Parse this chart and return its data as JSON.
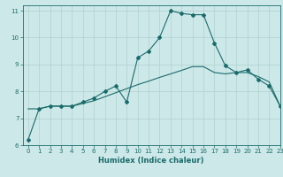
{
  "xlabel": "Humidex (Indice chaleur)",
  "ylabel": "",
  "background_color": "#cde8e8",
  "line_color": "#1a6b6b",
  "grid_color": "#b0d0d0",
  "xlim": [
    -0.5,
    23
  ],
  "ylim": [
    6,
    11.2
  ],
  "yticks": [
    6,
    7,
    8,
    9,
    10,
    11
  ],
  "xticks": [
    0,
    1,
    2,
    3,
    4,
    5,
    6,
    7,
    8,
    9,
    10,
    11,
    12,
    13,
    14,
    15,
    16,
    17,
    18,
    19,
    20,
    21,
    22,
    23
  ],
  "curve1_x": [
    0,
    1,
    2,
    3,
    4,
    5,
    6,
    7,
    8,
    9,
    10,
    11,
    12,
    13,
    14,
    15,
    16,
    17,
    18,
    19,
    20,
    21,
    22,
    23
  ],
  "curve1_y": [
    6.2,
    7.35,
    7.45,
    7.45,
    7.45,
    7.6,
    7.75,
    8.0,
    8.2,
    7.6,
    9.25,
    9.5,
    10.0,
    11.0,
    10.9,
    10.85,
    10.85,
    9.8,
    8.95,
    8.7,
    8.8,
    8.45,
    8.2,
    7.45
  ],
  "curve2_x": [
    0,
    1,
    2,
    3,
    4,
    5,
    6,
    7,
    8,
    9,
    10,
    11,
    12,
    13,
    14,
    15,
    16,
    17,
    18,
    19,
    20,
    21,
    22,
    23
  ],
  "curve2_y": [
    7.35,
    7.35,
    7.45,
    7.45,
    7.45,
    7.55,
    7.65,
    7.8,
    7.95,
    8.1,
    8.25,
    8.38,
    8.52,
    8.65,
    8.78,
    8.92,
    8.92,
    8.7,
    8.65,
    8.7,
    8.7,
    8.55,
    8.35,
    7.45
  ],
  "marker": "D",
  "markersize": 2,
  "linewidth": 0.8,
  "xlabel_fontsize": 6,
  "tick_labelsize": 5
}
